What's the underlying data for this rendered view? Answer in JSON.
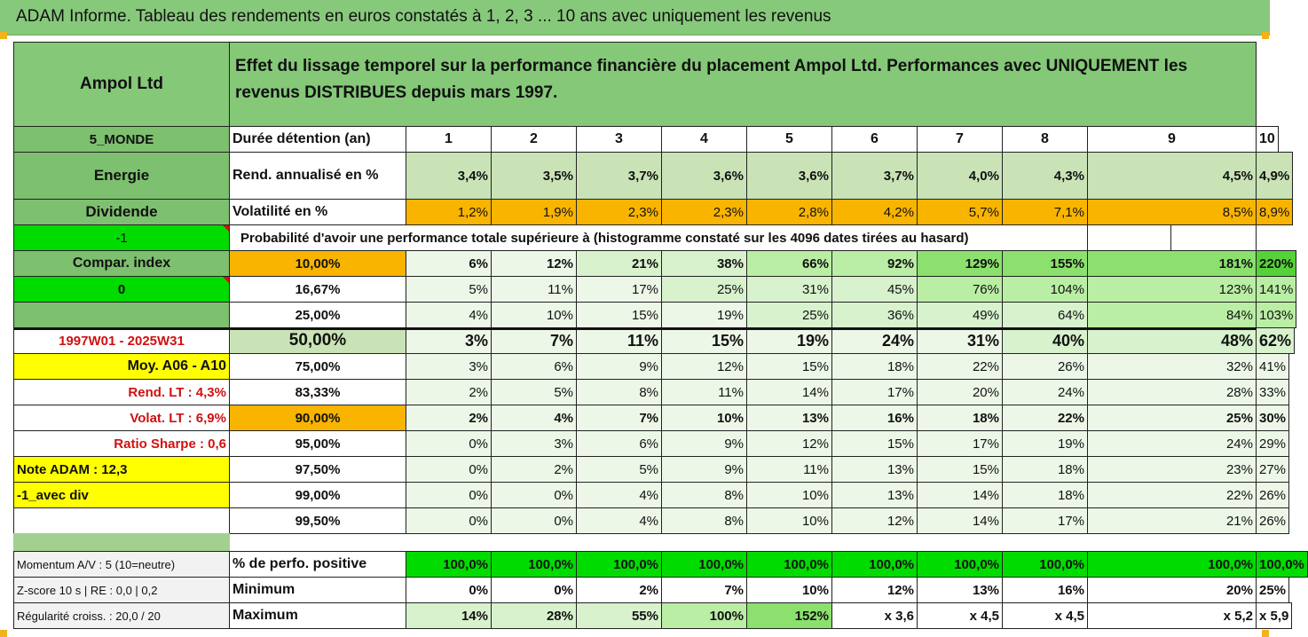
{
  "title": "ADAM Informe. Tableau des rendements en euros constatés à 1, 2, 3 ... 10 ans avec uniquement les revenus",
  "header": {
    "asset_name": "Ampol Ltd",
    "description": "Effet du lissage temporel sur la performance financière du placement Ampol Ltd. Performances avec UNIQUEMENT les revenus DISTRIBUES depuis mars 1997."
  },
  "years": [
    "1",
    "2",
    "3",
    "4",
    "5",
    "6",
    "7",
    "8",
    "9",
    "10"
  ],
  "side_labels": {
    "region": "5_MONDE",
    "sector": "Energie",
    "type": "Dividende",
    "flag_value": "-1",
    "compar_index": "Compar. index",
    "compar_value": "0",
    "period": "1997W01 - 2025W31",
    "moy": "Moy. A06 - A10",
    "rend_lt": "Rend. LT :   4,3%",
    "volat_lt": "Volat. LT :   6,9%",
    "sharpe": "Ratio Sharpe :   0,6",
    "note": "Note ADAM : 12,3",
    "avec_div": "-1_avec div",
    "momentum": "Momentum A/V : 5 (10=neutre)",
    "zscore": "Z-score 10 s  | RE : 0,0  | 0,2",
    "regularite": "Régularité croiss. : 20,0 / 20"
  },
  "row_labels": {
    "duree": "Durée détention (an)",
    "rend": "Rend. annualisé en %",
    "volat": "Volatilité en %",
    "proba": "Probabilité d'avoir une performance totale supérieure à (histogramme constaté sur les 4096 dates tirées au hasard)",
    "positive": "% de perfo. positive",
    "minimum": "Minimum",
    "maximum": "Maximum"
  },
  "rend_values": [
    "3,4%",
    "3,5%",
    "3,7%",
    "3,6%",
    "3,6%",
    "3,7%",
    "4,0%",
    "4,3%",
    "4,5%",
    "4,9%"
  ],
  "volat_values": [
    "1,2%",
    "1,9%",
    "2,3%",
    "2,3%",
    "2,8%",
    "4,2%",
    "5,7%",
    "7,1%",
    "8,5%",
    "8,9%"
  ],
  "percentiles": [
    {
      "label": "10,00%",
      "values": [
        "6%",
        "12%",
        "21%",
        "38%",
        "66%",
        "92%",
        "129%",
        "155%",
        "181%",
        "220%"
      ]
    },
    {
      "label": "16,67%",
      "values": [
        "5%",
        "11%",
        "17%",
        "25%",
        "31%",
        "45%",
        "76%",
        "104%",
        "123%",
        "141%"
      ]
    },
    {
      "label": "25,00%",
      "values": [
        "4%",
        "10%",
        "15%",
        "19%",
        "25%",
        "36%",
        "49%",
        "64%",
        "84%",
        "103%"
      ]
    },
    {
      "label": "50,00%",
      "values": [
        "3%",
        "7%",
        "11%",
        "15%",
        "19%",
        "24%",
        "31%",
        "40%",
        "48%",
        "62%"
      ]
    },
    {
      "label": "75,00%",
      "values": [
        "3%",
        "6%",
        "9%",
        "12%",
        "15%",
        "18%",
        "22%",
        "26%",
        "32%",
        "41%"
      ]
    },
    {
      "label": "83,33%",
      "values": [
        "2%",
        "5%",
        "8%",
        "11%",
        "14%",
        "17%",
        "20%",
        "24%",
        "28%",
        "33%"
      ]
    },
    {
      "label": "90,00%",
      "values": [
        "2%",
        "4%",
        "7%",
        "10%",
        "13%",
        "16%",
        "18%",
        "22%",
        "25%",
        "30%"
      ]
    },
    {
      "label": "95,00%",
      "values": [
        "0%",
        "3%",
        "6%",
        "9%",
        "12%",
        "15%",
        "17%",
        "19%",
        "24%",
        "29%"
      ]
    },
    {
      "label": "97,50%",
      "values": [
        "0%",
        "2%",
        "5%",
        "9%",
        "11%",
        "13%",
        "15%",
        "18%",
        "23%",
        "27%"
      ]
    },
    {
      "label": "99,00%",
      "values": [
        "0%",
        "0%",
        "4%",
        "8%",
        "10%",
        "13%",
        "14%",
        "18%",
        "22%",
        "26%"
      ]
    },
    {
      "label": "99,50%",
      "values": [
        "0%",
        "0%",
        "4%",
        "8%",
        "10%",
        "12%",
        "14%",
        "17%",
        "21%",
        "26%"
      ]
    }
  ],
  "positive_values": [
    "100,0%",
    "100,0%",
    "100,0%",
    "100,0%",
    "100,0%",
    "100,0%",
    "100,0%",
    "100,0%",
    "100,0%",
    "100,0%"
  ],
  "minimum_values": [
    "0%",
    "0%",
    "2%",
    "7%",
    "10%",
    "12%",
    "13%",
    "16%",
    "20%",
    "25%"
  ],
  "maximum_values": [
    "14%",
    "28%",
    "55%",
    "100%",
    "152%",
    "x 3,6",
    "x 4,5",
    "x 4,5",
    "x 5,2",
    "x 5,9"
  ],
  "colors": {
    "header_green": "#84c878",
    "orange": "#f9b400",
    "bright_green": "#00dc00",
    "yellow": "#ffff00",
    "red_text": "#d01010"
  }
}
